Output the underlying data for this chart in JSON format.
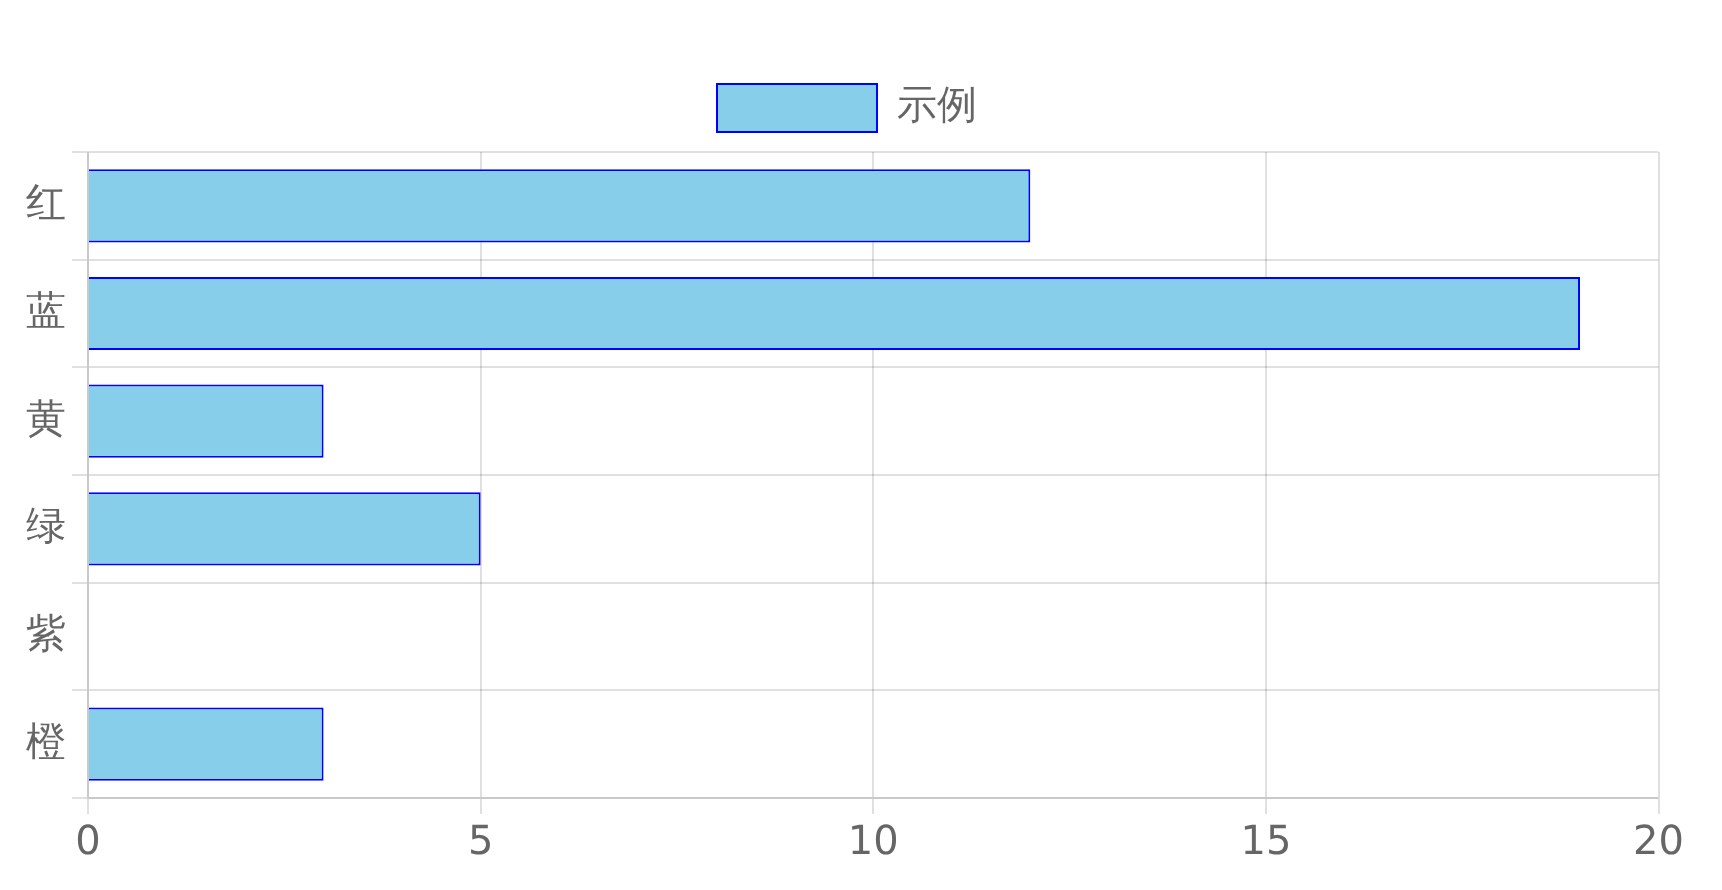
{
  "chart_data": {
    "type": "bar",
    "orientation": "horizontal",
    "categories": [
      "红",
      "蓝",
      "黄",
      "绿",
      "紫",
      "橙"
    ],
    "series": [
      {
        "name": "示例",
        "color": "#87ceeb",
        "values": [
          12,
          19,
          3,
          5,
          0,
          3
        ]
      }
    ],
    "xlim": [
      0,
      20
    ],
    "xticks": [
      0,
      5,
      10,
      15,
      20
    ],
    "grid": true,
    "legend": "top"
  }
}
